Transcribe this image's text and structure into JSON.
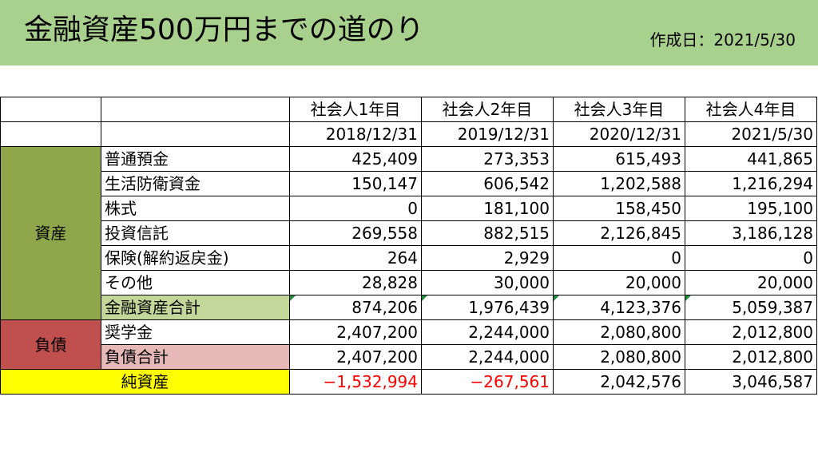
{
  "title": "金融資産500万円までの道のり",
  "created": "作成日：2021/5/30",
  "columns": [
    {
      "label": "社会人1年目",
      "date": "2018/12/31"
    },
    {
      "label": "社会人2年目",
      "date": "2019/12/31"
    },
    {
      "label": "社会人3年目",
      "date": "2020/12/31"
    },
    {
      "label": "社会人4年目",
      "date": "2021/5/30"
    }
  ],
  "assets": {
    "category": "資産",
    "rows": [
      {
        "label": "普通預金",
        "values": [
          "425,409",
          "273,353",
          "615,493",
          "441,865"
        ]
      },
      {
        "label": "生活防衛資金",
        "values": [
          "150,147",
          "606,542",
          "1,202,588",
          "1,216,294"
        ]
      },
      {
        "label": "株式",
        "values": [
          "0",
          "181,100",
          "158,450",
          "195,100"
        ]
      },
      {
        "label": "投資信託",
        "values": [
          "269,558",
          "882,515",
          "2,126,845",
          "3,186,128"
        ]
      },
      {
        "label": "保険(解約返戻金)",
        "values": [
          "264",
          "2,929",
          "0",
          "0"
        ]
      },
      {
        "label": "その他",
        "values": [
          "28,828",
          "30,000",
          "20,000",
          "20,000"
        ]
      }
    ],
    "total": {
      "label": "金融資産合計",
      "values": [
        "874,206",
        "1,976,439",
        "4,123,376",
        "5,059,387"
      ]
    }
  },
  "liabilities": {
    "category": "負債",
    "rows": [
      {
        "label": "奨学金",
        "values": [
          "2,407,200",
          "2,244,000",
          "2,080,800",
          "2,012,800"
        ]
      }
    ],
    "total": {
      "label": "負債合計",
      "values": [
        "2,407,200",
        "2,244,000",
        "2,080,800",
        "2,012,800"
      ]
    }
  },
  "net_assets": {
    "label": "純資産",
    "values": [
      "−1,532,994",
      "−267,561",
      "2,042,576",
      "3,046,587"
    ]
  },
  "colors": {
    "banner": "#a9d18e",
    "asset_category": "#8ea74a",
    "asset_total": "#c4d79b",
    "liability_category": "#c0504d",
    "liability_total": "#e6b8b7",
    "net_label": "#ffff00",
    "negative": "#ff0000"
  }
}
